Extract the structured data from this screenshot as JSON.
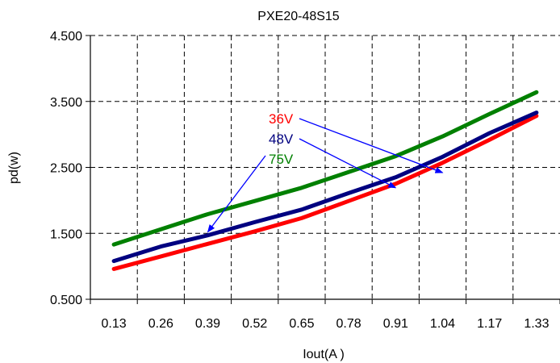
{
  "chart_data": {
    "type": "line",
    "title": "PXE20-48S15",
    "xlabel": "Iout(A )",
    "ylabel": "pd(w)",
    "categories": [
      "0.13",
      "0.26",
      "0.39",
      "0.52",
      "0.65",
      "0.78",
      "0.91",
      "1.04",
      "1.17",
      "1.33"
    ],
    "y_ticks": [
      "0.500",
      "1.500",
      "2.500",
      "3.500",
      "4.500"
    ],
    "ylim": [
      0.5,
      4.5
    ],
    "grid": true,
    "series": [
      {
        "name": "36V",
        "color": "#ff0000",
        "values": [
          0.96,
          1.15,
          1.34,
          1.53,
          1.73,
          1.99,
          2.25,
          2.57,
          2.92,
          3.28
        ]
      },
      {
        "name": "48V",
        "color": "#000080",
        "values": [
          1.08,
          1.3,
          1.47,
          1.67,
          1.86,
          2.11,
          2.35,
          2.66,
          3.02,
          3.33
        ]
      },
      {
        "name": "75V",
        "color": "#008000",
        "values": [
          1.33,
          1.56,
          1.79,
          1.99,
          2.19,
          2.43,
          2.67,
          2.97,
          3.31,
          3.64
        ]
      }
    ],
    "annotations": [
      {
        "label": "36V",
        "target": [
          7,
          2.42
        ]
      },
      {
        "label": "48V",
        "target": [
          6,
          2.19
        ]
      },
      {
        "label": "75V",
        "target": [
          2,
          1.52
        ]
      }
    ],
    "annotation_color": "#0000ff"
  }
}
